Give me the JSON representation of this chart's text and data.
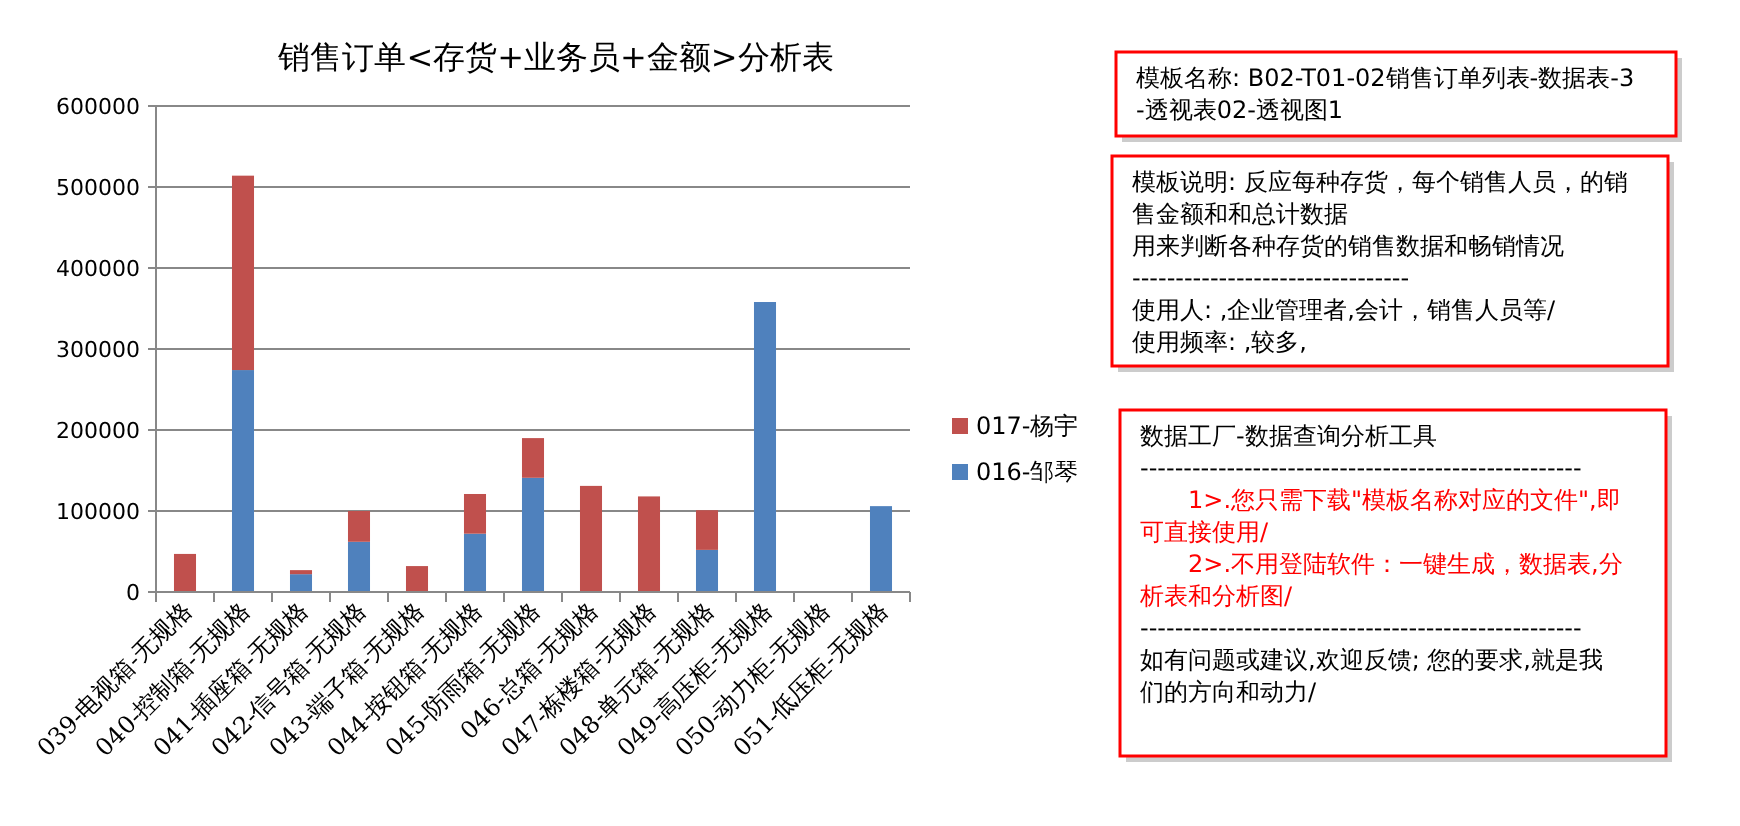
{
  "chart_data": {
    "type": "bar",
    "title": "销售订单<存货+业务员+金额>分析表",
    "stacked": true,
    "grid": "y",
    "legend": "right",
    "categories": [
      "039-电视箱-无规格",
      "040-控制箱-无规格",
      "041-插座箱-无规格",
      "042-信号箱-无规格",
      "043-端子箱-无规格",
      "044-按钮箱-无规格",
      "045-防雨箱-无规格",
      "046-总箱-无规格",
      "047-栋楼箱-无规格",
      "048-单元箱-无规格",
      "049-高压柜-无规格",
      "050-动力柜-无规格",
      "051-低压柜-无规格"
    ],
    "series": [
      {
        "name": "016-邹琴",
        "color": "#4f81bd",
        "values": [
          null,
          274000,
          22000,
          62000,
          null,
          72000,
          141000,
          null,
          null,
          52000,
          358000,
          null,
          106000
        ]
      },
      {
        "name": "017-杨宇",
        "color": "#c0504d",
        "values": [
          47000,
          240000,
          5000,
          38000,
          32000,
          49000,
          49000,
          131000,
          118000,
          49000,
          null,
          null,
          null
        ]
      }
    ],
    "ylim": [
      0,
      600000
    ],
    "yticks": [
      0,
      100000,
      200000,
      300000,
      400000,
      500000,
      600000
    ],
    "annotations": [
      "模板名称:  B02-T01-02销售订单列表-数据表-3-透视表02-透视图1",
      "模板说明: 反应每种存货，每个销售人员，的销售金额和和总计数据",
      "用来判断各种存货的销售数据和畅销情况",
      "--------------------------------",
      "使用人: ,企业管理者,会计，销售人员等/",
      "使用频率: ,较多,",
      "数据工厂-数据查询分析工具",
      "---------------------------------------------------",
      "1>.您只需下载\"模板名称对应的文件\",即可直接使用/",
      "2>.不用登陆软件：一键生成，数据表,分析表和分析图/",
      "---------------------------------------------------",
      "如有问题或建议,欢迎反馈; 您的要求,就是我们的方向和动力/"
    ]
  }
}
